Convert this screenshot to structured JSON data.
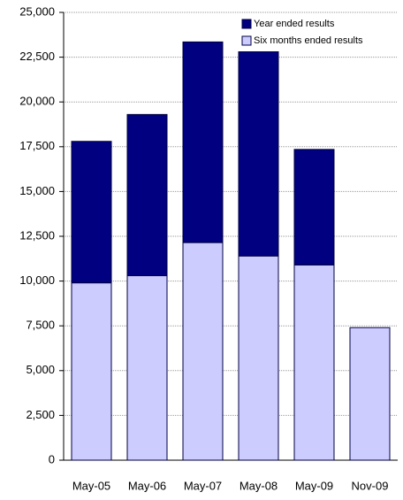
{
  "chart_data": {
    "type": "stacked_bar",
    "categories": [
      "May-05",
      "May-06",
      "May-07",
      "May-08",
      "May-09",
      "Nov-09"
    ],
    "series": [
      {
        "name": "Year ended results",
        "color": "#000080",
        "values": [
          7900,
          9000,
          11200,
          11400,
          6450,
          null
        ]
      },
      {
        "name": "Six months ended results",
        "color": "#ccccff",
        "values": [
          9900,
          10300,
          12150,
          11400,
          10900,
          7400
        ]
      }
    ],
    "ylim": [
      0,
      25000
    ],
    "yticks": [
      0,
      {
        "value": 2500,
        "label": "2,500"
      },
      {
        "value": 5000,
        "label": "5,000"
      },
      {
        "value": 7500,
        "label": "7,500"
      },
      {
        "value": 10000,
        "label": "10,000"
      },
      {
        "value": 12500,
        "label": "12,500"
      },
      {
        "value": 15000,
        "label": "15,000"
      },
      {
        "value": 17500,
        "label": "17,500"
      },
      {
        "value": 20000,
        "label": "20,000"
      },
      {
        "value": 22500,
        "label": "22,500"
      },
      {
        "value": 25000,
        "label": "25,000"
      }
    ],
    "grid": true,
    "legend": "top-right"
  }
}
